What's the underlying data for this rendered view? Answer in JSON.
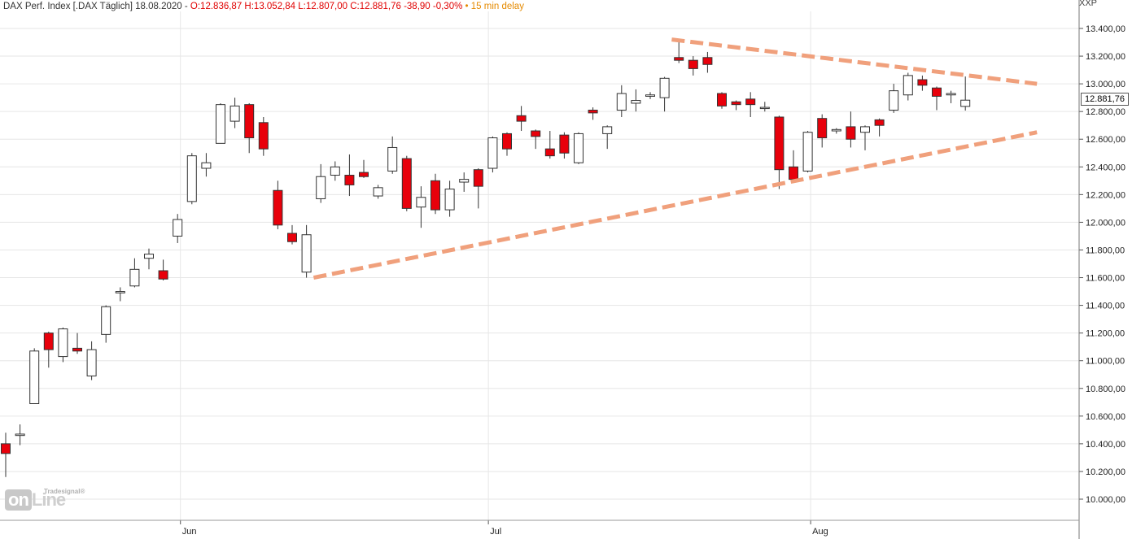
{
  "header": {
    "instrument": "DAX Perf. Index [.DAX Täglich] 18.08.2020 - ",
    "ohlc": "O:12.836,87 H:13.052,84 L:12.807,00 C:12.881,76 -38,90 -0,30%",
    "delay": "• 15 min delay"
  },
  "symbol": "XXP",
  "last_price_label": "12.881,76",
  "logo": {
    "prefix": "on",
    "suffix": "Line",
    "vendor": "Tradesignal®"
  },
  "colors": {
    "up_body": "#ffffff",
    "down_body": "#e8000b",
    "wick": "#333333",
    "trendline": "#f0a07c",
    "grid": "#e6e6e6"
  },
  "chart_data": {
    "type": "candlestick",
    "y_axis": {
      "ylim": [
        9800,
        13500
      ],
      "ticks": [
        10000,
        10200,
        10400,
        10600,
        10800,
        11000,
        11200,
        11400,
        11600,
        11800,
        12000,
        12200,
        12400,
        12600,
        12800,
        13000,
        13200,
        13400
      ],
      "tick_labels": [
        "10.000,00",
        "10.200,00",
        "10.400,00",
        "10.600,00",
        "10.800,00",
        "11.000,00",
        "11.200,00",
        "11.400,00",
        "11.600,00",
        "11.800,00",
        "12.000,00",
        "12.200,00",
        "12.400,00",
        "12.600,00",
        "12.800,00",
        "13.000,00",
        "13.200,00",
        "13.400,00"
      ]
    },
    "x_axis": {
      "labels": [
        {
          "label": "Jun",
          "index": 12.2
        },
        {
          "label": "Jul",
          "index": 33.7
        },
        {
          "label": "Aug",
          "index": 56.2
        }
      ]
    },
    "candles": [
      {
        "o": 10400,
        "h": 10480,
        "l": 10160,
        "c": 10330
      },
      {
        "o": 10460,
        "h": 10540,
        "l": 10390,
        "c": 10470
      },
      {
        "o": 10690,
        "h": 11090,
        "l": 10690,
        "c": 11070
      },
      {
        "o": 11200,
        "h": 11210,
        "l": 10950,
        "c": 11080
      },
      {
        "o": 11030,
        "h": 11240,
        "l": 10990,
        "c": 11230
      },
      {
        "o": 11090,
        "h": 11200,
        "l": 11050,
        "c": 11070
      },
      {
        "o": 10890,
        "h": 11140,
        "l": 10860,
        "c": 11080
      },
      {
        "o": 11190,
        "h": 11400,
        "l": 11130,
        "c": 11390
      },
      {
        "o": 11490,
        "h": 11530,
        "l": 11430,
        "c": 11500
      },
      {
        "o": 11540,
        "h": 11740,
        "l": 11530,
        "c": 11660
      },
      {
        "o": 11740,
        "h": 11810,
        "l": 11660,
        "c": 11770
      },
      {
        "o": 11650,
        "h": 11730,
        "l": 11580,
        "c": 11590
      },
      {
        "o": 11900,
        "h": 12060,
        "l": 11850,
        "c": 12020
      },
      {
        "o": 12150,
        "h": 12500,
        "l": 12130,
        "c": 12480
      },
      {
        "o": 12390,
        "h": 12500,
        "l": 12330,
        "c": 12430
      },
      {
        "o": 12570,
        "h": 12860,
        "l": 12570,
        "c": 12850
      },
      {
        "o": 12730,
        "h": 12900,
        "l": 12680,
        "c": 12840
      },
      {
        "o": 12850,
        "h": 12860,
        "l": 12500,
        "c": 12610
      },
      {
        "o": 12720,
        "h": 12760,
        "l": 12480,
        "c": 12530
      },
      {
        "o": 12230,
        "h": 12300,
        "l": 11950,
        "c": 11980
      },
      {
        "o": 11920,
        "h": 11980,
        "l": 11840,
        "c": 11860
      },
      {
        "o": 11640,
        "h": 11980,
        "l": 11600,
        "c": 11910
      },
      {
        "o": 12170,
        "h": 12420,
        "l": 12140,
        "c": 12330
      },
      {
        "o": 12340,
        "h": 12440,
        "l": 12300,
        "c": 12400
      },
      {
        "o": 12340,
        "h": 12490,
        "l": 12190,
        "c": 12270
      },
      {
        "o": 12360,
        "h": 12450,
        "l": 12320,
        "c": 12330
      },
      {
        "o": 12190,
        "h": 12270,
        "l": 12170,
        "c": 12250
      },
      {
        "o": 12370,
        "h": 12620,
        "l": 12350,
        "c": 12540
      },
      {
        "o": 12460,
        "h": 12480,
        "l": 12080,
        "c": 12100
      },
      {
        "o": 12110,
        "h": 12260,
        "l": 11960,
        "c": 12180
      },
      {
        "o": 12300,
        "h": 12350,
        "l": 12060,
        "c": 12090
      },
      {
        "o": 12090,
        "h": 12300,
        "l": 12040,
        "c": 12240
      },
      {
        "o": 12290,
        "h": 12360,
        "l": 12220,
        "c": 12310
      },
      {
        "o": 12380,
        "h": 12390,
        "l": 12100,
        "c": 12260
      },
      {
        "o": 12390,
        "h": 12620,
        "l": 12360,
        "c": 12610
      },
      {
        "o": 12640,
        "h": 12650,
        "l": 12480,
        "c": 12530
      },
      {
        "o": 12770,
        "h": 12840,
        "l": 12660,
        "c": 12730
      },
      {
        "o": 12660,
        "h": 12670,
        "l": 12530,
        "c": 12620
      },
      {
        "o": 12530,
        "h": 12660,
        "l": 12460,
        "c": 12480
      },
      {
        "o": 12630,
        "h": 12650,
        "l": 12460,
        "c": 12500
      },
      {
        "o": 12430,
        "h": 12650,
        "l": 12420,
        "c": 12640
      },
      {
        "o": 12810,
        "h": 12830,
        "l": 12740,
        "c": 12790
      },
      {
        "o": 12640,
        "h": 12700,
        "l": 12530,
        "c": 12690
      },
      {
        "o": 12810,
        "h": 12990,
        "l": 12760,
        "c": 12930
      },
      {
        "o": 12860,
        "h": 12960,
        "l": 12800,
        "c": 12880
      },
      {
        "o": 12910,
        "h": 12940,
        "l": 12890,
        "c": 12920
      },
      {
        "o": 12900,
        "h": 13050,
        "l": 12800,
        "c": 13040
      },
      {
        "o": 13190,
        "h": 13320,
        "l": 13150,
        "c": 13170
      },
      {
        "o": 13170,
        "h": 13200,
        "l": 13060,
        "c": 13110
      },
      {
        "o": 13190,
        "h": 13230,
        "l": 13080,
        "c": 13140
      },
      {
        "o": 12930,
        "h": 12940,
        "l": 12820,
        "c": 12840
      },
      {
        "o": 12870,
        "h": 12880,
        "l": 12810,
        "c": 12850
      },
      {
        "o": 12890,
        "h": 12940,
        "l": 12760,
        "c": 12850
      },
      {
        "o": 12830,
        "h": 12870,
        "l": 12800,
        "c": 12830
      },
      {
        "o": 12760,
        "h": 12770,
        "l": 12240,
        "c": 12380
      },
      {
        "o": 12400,
        "h": 12520,
        "l": 12310,
        "c": 12310
      },
      {
        "o": 12370,
        "h": 12660,
        "l": 12360,
        "c": 12650
      },
      {
        "o": 12750,
        "h": 12780,
        "l": 12540,
        "c": 12610
      },
      {
        "o": 12660,
        "h": 12680,
        "l": 12640,
        "c": 12670
      },
      {
        "o": 12690,
        "h": 12800,
        "l": 12540,
        "c": 12600
      },
      {
        "o": 12650,
        "h": 12700,
        "l": 12520,
        "c": 12690
      },
      {
        "o": 12740,
        "h": 12750,
        "l": 12620,
        "c": 12700
      },
      {
        "o": 12810,
        "h": 13000,
        "l": 12790,
        "c": 12950
      },
      {
        "o": 12920,
        "h": 13080,
        "l": 12880,
        "c": 13060
      },
      {
        "o": 13030,
        "h": 13060,
        "l": 12950,
        "c": 12990
      },
      {
        "o": 12970,
        "h": 12980,
        "l": 12810,
        "c": 12910
      },
      {
        "o": 12920,
        "h": 12950,
        "l": 12860,
        "c": 12930
      },
      {
        "o": 12837,
        "h": 13053,
        "l": 12807,
        "c": 12882
      }
    ],
    "trendlines": [
      {
        "from": [
          21.5,
          11600
        ],
        "to": [
          72,
          12650
        ]
      },
      {
        "from": [
          46.5,
          13320
        ],
        "to": [
          72,
          13000
        ]
      }
    ],
    "grid": true
  }
}
